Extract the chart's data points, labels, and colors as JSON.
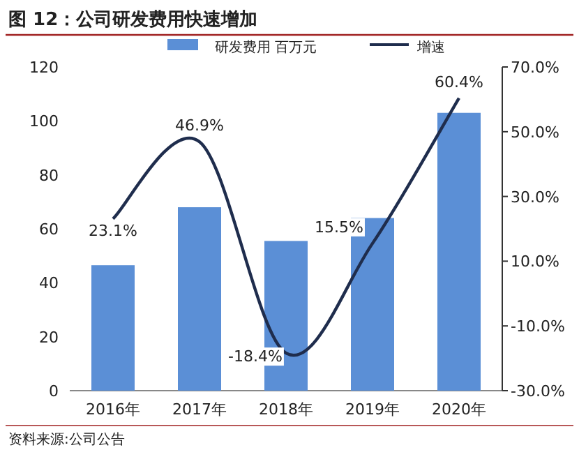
{
  "chart_data": {
    "type": "bar",
    "title": "图 12：公司研发费用快速增加",
    "categories": [
      "2016年",
      "2017年",
      "2018年",
      "2019年",
      "2020年"
    ],
    "series": [
      {
        "name": "研发费用 百万元",
        "color": "#5b8fd6",
        "values": [
          46.5,
          68,
          55.5,
          64,
          103
        ]
      },
      {
        "name": "增速",
        "type": "line",
        "axis": "y2",
        "color": "#1f2d4d",
        "values": [
          23.1,
          46.9,
          -18.4,
          15.5,
          60.4
        ],
        "value_labels": [
          "23.1%",
          "46.9%",
          "-18.4%",
          "15.5%",
          "60.4%"
        ]
      }
    ],
    "ylim": [
      0,
      120
    ],
    "yticks": [
      0,
      20,
      40,
      60,
      80,
      100,
      120
    ],
    "y2lim": [
      -30,
      70
    ],
    "y2ticks": [
      {
        "value": -30,
        "label": "-30.0%"
      },
      {
        "value": -10,
        "label": "-10.0%"
      },
      {
        "value": 10,
        "label": "10.0%"
      },
      {
        "value": 30,
        "label": "30.0%"
      },
      {
        "value": 50,
        "label": "50.0%"
      },
      {
        "value": 70,
        "label": "70.0%"
      }
    ],
    "legend": "top",
    "grid": false,
    "marker": "none",
    "annotations": [
      "资料来源:公司公告"
    ]
  }
}
